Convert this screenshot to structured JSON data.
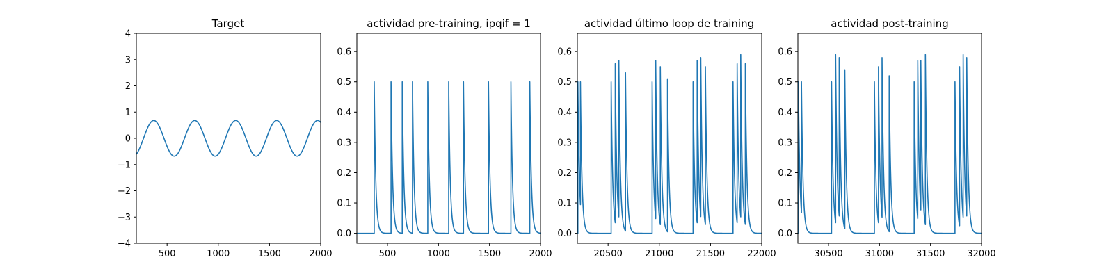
{
  "colors": {
    "line": "#1f77b4",
    "axes": "#000000",
    "background": "#ffffff"
  },
  "chart_data": [
    {
      "type": "line",
      "title": "Target",
      "xlim": [
        200,
        2000
      ],
      "ylim": [
        -4,
        4
      ],
      "xticks": [
        500,
        1000,
        1500,
        2000
      ],
      "yticks": [
        -4,
        -3,
        -2,
        -1,
        0,
        1,
        2,
        3,
        4
      ],
      "xtick_labels": [
        "500",
        "1000",
        "1500",
        "2000"
      ],
      "ytick_labels": [
        "−4",
        "−3",
        "−2",
        "−1",
        "0",
        "1",
        "2",
        "3",
        "4"
      ],
      "series": [
        {
          "kind": "sine",
          "amplitude": 0.68,
          "period": 400,
          "phase_x": 170
        }
      ]
    },
    {
      "type": "line",
      "title": "actividad pre-training, ipqif = 1",
      "xlim": [
        200,
        2000
      ],
      "ylim": [
        -0.033,
        0.66
      ],
      "xticks": [
        500,
        1000,
        1500,
        2000
      ],
      "yticks": [
        0.0,
        0.1,
        0.2,
        0.3,
        0.4,
        0.5,
        0.6
      ],
      "xtick_labels": [
        "500",
        "1000",
        "1500",
        "2000"
      ],
      "ytick_labels": [
        "0.0",
        "0.1",
        "0.2",
        "0.3",
        "0.4",
        "0.5",
        "0.6"
      ],
      "series": [
        {
          "kind": "spikes",
          "decay": 15,
          "spikes": [
            [
              370,
              0.5
            ],
            [
              535,
              0.5
            ],
            [
              645,
              0.5
            ],
            [
              745,
              0.5
            ],
            [
              895,
              0.5
            ],
            [
              1100,
              0.5
            ],
            [
              1245,
              0.5
            ],
            [
              1490,
              0.5
            ],
            [
              1710,
              0.5
            ],
            [
              1895,
              0.5
            ]
          ]
        }
      ]
    },
    {
      "type": "line",
      "title": "actividad último loop de training",
      "xlim": [
        20200,
        22000
      ],
      "ylim": [
        -0.033,
        0.66
      ],
      "xticks": [
        20500,
        21000,
        21500,
        22000
      ],
      "yticks": [
        0.0,
        0.1,
        0.2,
        0.3,
        0.4,
        0.5,
        0.6
      ],
      "xtick_labels": [
        "20500",
        "21000",
        "21500",
        "22000"
      ],
      "ytick_labels": [
        "0.0",
        "0.1",
        "0.2",
        "0.3",
        "0.4",
        "0.5",
        "0.6"
      ],
      "series": [
        {
          "kind": "spikes",
          "decay": 15,
          "spikes": [
            [
              20205,
              0.5
            ],
            [
              20230,
              0.5
            ],
            [
              20530,
              0.5
            ],
            [
              20570,
              0.56
            ],
            [
              20605,
              0.57
            ],
            [
              20670,
              0.53
            ],
            [
              20930,
              0.5
            ],
            [
              20965,
              0.57
            ],
            [
              21010,
              0.55
            ],
            [
              21080,
              0.51
            ],
            [
              21330,
              0.5
            ],
            [
              21370,
              0.57
            ],
            [
              21405,
              0.58
            ],
            [
              21450,
              0.55
            ],
            [
              21720,
              0.5
            ],
            [
              21760,
              0.56
            ],
            [
              21795,
              0.59
            ],
            [
              21840,
              0.56
            ]
          ]
        }
      ]
    },
    {
      "type": "line",
      "title": "actividad post-training",
      "xlim": [
        30200,
        32000
      ],
      "ylim": [
        -0.033,
        0.66
      ],
      "xticks": [
        30500,
        31000,
        31500,
        32000
      ],
      "yticks": [
        0.0,
        0.1,
        0.2,
        0.3,
        0.4,
        0.5,
        0.6
      ],
      "xtick_labels": [
        "30500",
        "31000",
        "31500",
        "32000"
      ],
      "ytick_labels": [
        "0.0",
        "0.1",
        "0.2",
        "0.3",
        "0.4",
        "0.5",
        "0.6"
      ],
      "series": [
        {
          "kind": "spikes",
          "decay": 15,
          "spikes": [
            [
              30205,
              0.5
            ],
            [
              30235,
              0.5
            ],
            [
              30530,
              0.5
            ],
            [
              30570,
              0.59
            ],
            [
              30605,
              0.58
            ],
            [
              30660,
              0.54
            ],
            [
              30950,
              0.5
            ],
            [
              30990,
              0.55
            ],
            [
              31025,
              0.58
            ],
            [
              31095,
              0.52
            ],
            [
              31340,
              0.5
            ],
            [
              31375,
              0.57
            ],
            [
              31405,
              0.57
            ],
            [
              31450,
              0.59
            ],
            [
              31740,
              0.5
            ],
            [
              31785,
              0.55
            ],
            [
              31820,
              0.59
            ],
            [
              31855,
              0.58
            ]
          ]
        }
      ]
    }
  ]
}
